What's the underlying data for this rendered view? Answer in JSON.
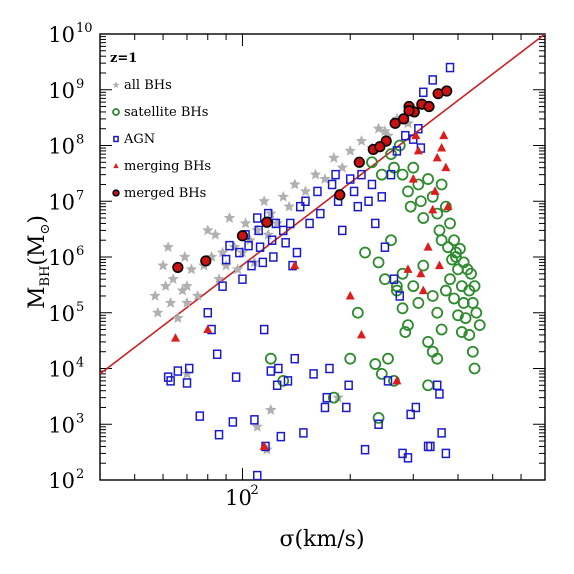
{
  "chart_data": {
    "type": "scatter",
    "annotation": "z=1",
    "xlabel": "σ(km/s)",
    "ylabel": "M_BH(M_⊙)",
    "x_scale": "log",
    "y_scale": "log",
    "xlim": [
      40,
      700
    ],
    "ylim": [
      100,
      10000000000
    ],
    "x_ticks": [
      {
        "value": 100,
        "base": "10",
        "exp": "2"
      }
    ],
    "y_ticks": [
      {
        "value": 100,
        "base": "10",
        "exp": "2"
      },
      {
        "value": 1000,
        "base": "10",
        "exp": "3"
      },
      {
        "value": 10000,
        "base": "10",
        "exp": "4"
      },
      {
        "value": 100000,
        "base": "10",
        "exp": "5"
      },
      {
        "value": 1000000,
        "base": "10",
        "exp": "6"
      },
      {
        "value": 10000000,
        "base": "10",
        "exp": "7"
      },
      {
        "value": 100000000,
        "base": "10",
        "exp": "8"
      },
      {
        "value": 1000000000,
        "base": "10",
        "exp": "9"
      },
      {
        "value": 10000000000,
        "base": "10",
        "exp": "10"
      }
    ],
    "legend_placement": "top-left",
    "fit_line": {
      "color": "#cc2020",
      "points": [
        [
          40,
          8000
        ],
        [
          700,
          10000000000
        ]
      ]
    },
    "series": [
      {
        "name": "all BHs",
        "marker": "star",
        "color": "#b0b0b0",
        "points": [
          [
            57,
            200000
          ],
          [
            58,
            100000
          ],
          [
            60,
            700000
          ],
          [
            61,
            300000
          ],
          [
            62,
            1500000
          ],
          [
            63,
            150000
          ],
          [
            64,
            400000
          ],
          [
            66,
            80000
          ],
          [
            68,
            250000
          ],
          [
            69,
            1000000
          ],
          [
            70,
            300000
          ],
          [
            70,
            150000
          ],
          [
            72,
            600000
          ],
          [
            75,
            200000
          ],
          [
            78,
            700000
          ],
          [
            80,
            3000000
          ],
          [
            82,
            1000000
          ],
          [
            84,
            2500000
          ],
          [
            86,
            400000
          ],
          [
            88,
            1200000
          ],
          [
            90,
            700000
          ],
          [
            92,
            5000000
          ],
          [
            95,
            1500000
          ],
          [
            97,
            600000
          ],
          [
            100,
            1200000
          ],
          [
            102,
            4000000
          ],
          [
            105,
            2000000
          ],
          [
            108,
            800000
          ],
          [
            110,
            3000000
          ],
          [
            115,
            10000000
          ],
          [
            118,
            2500000
          ],
          [
            120,
            6000000
          ],
          [
            125,
            4000000
          ],
          [
            130,
            12000000
          ],
          [
            135,
            8000000
          ],
          [
            140,
            20000000
          ],
          [
            150,
            15000000
          ],
          [
            160,
            30000000
          ],
          [
            170,
            25000000
          ],
          [
            180,
            60000000
          ],
          [
            190,
            40000000
          ],
          [
            200,
            80000000
          ],
          [
            215,
            120000000
          ],
          [
            230,
            90000000
          ],
          [
            240,
            200000000
          ],
          [
            255,
            150000000
          ],
          [
            270,
            300000000
          ],
          [
            290,
            250000000
          ],
          [
            250,
            180000000
          ],
          [
            70,
            8000
          ],
          [
            117,
            350
          ],
          [
            120,
            1800
          ],
          [
            185,
            3000
          ],
          [
            110,
            900
          ]
        ]
      },
      {
        "name": "satellite BHs",
        "marker": "circle",
        "color": "#2e8b2e",
        "points": [
          [
            230,
            50000000
          ],
          [
            245,
            30000000
          ],
          [
            260,
            70000000
          ],
          [
            265,
            40000000
          ],
          [
            275,
            100000000
          ],
          [
            280,
            30000000
          ],
          [
            290,
            15000000
          ],
          [
            295,
            8000000
          ],
          [
            300,
            40000000
          ],
          [
            310,
            20000000
          ],
          [
            315,
            10000000
          ],
          [
            320,
            5000000
          ],
          [
            330,
            25000000
          ],
          [
            340,
            12000000
          ],
          [
            350,
            6000000
          ],
          [
            355,
            3000000
          ],
          [
            360,
            20000000
          ],
          [
            370,
            8000000
          ],
          [
            380,
            4000000
          ],
          [
            390,
            2000000
          ],
          [
            395,
            1000000
          ],
          [
            400,
            600000
          ],
          [
            410,
            300000
          ],
          [
            415,
            150000
          ],
          [
            420,
            80000
          ],
          [
            430,
            40000
          ],
          [
            440,
            20000
          ],
          [
            445,
            10000
          ],
          [
            220,
            1200000
          ],
          [
            240,
            800000
          ],
          [
            250,
            400000
          ],
          [
            260,
            2000000
          ],
          [
            270,
            250000
          ],
          [
            280,
            120000
          ],
          [
            290,
            60000
          ],
          [
            300,
            300000
          ],
          [
            310,
            150000
          ],
          [
            320,
            700000
          ],
          [
            330,
            30000
          ],
          [
            340,
            200000
          ],
          [
            350,
            100000
          ],
          [
            360,
            50000
          ],
          [
            370,
            250000
          ],
          [
            380,
            400000
          ],
          [
            390,
            180000
          ],
          [
            400,
            90000
          ],
          [
            410,
            45000
          ],
          [
            210,
            100000
          ],
          [
            200,
            15000
          ],
          [
            120,
            15000
          ],
          [
            130,
            6000
          ],
          [
            180,
            3000
          ],
          [
            240,
            1300
          ],
          [
            255,
            15000
          ],
          [
            265,
            6000
          ],
          [
            270,
            300000
          ],
          [
            280,
            500000
          ],
          [
            330,
            5000
          ],
          [
            340,
            20000
          ],
          [
            350,
            15000
          ],
          [
            360,
            2000000
          ],
          [
            375,
            1500000
          ],
          [
            385,
            900000
          ],
          [
            395,
            1200000
          ],
          [
            405,
            1400000
          ],
          [
            415,
            800000
          ],
          [
            425,
            600000
          ],
          [
            435,
            500000
          ],
          [
            445,
            300000
          ],
          [
            430,
            250000
          ],
          [
            440,
            150000
          ],
          [
            450,
            100000
          ],
          [
            460,
            60000
          ],
          [
            235,
            12000
          ],
          [
            245,
            8000
          ],
          [
            285,
            45000
          ]
        ]
      },
      {
        "name": "AGN",
        "marker": "square",
        "color": "#1a1acc",
        "points": [
          [
            62,
            7000
          ],
          [
            63,
            6000
          ],
          [
            66,
            9000
          ],
          [
            70,
            5500
          ],
          [
            76,
            1400
          ],
          [
            80,
            100000
          ],
          [
            82,
            50000
          ],
          [
            85,
            18000
          ],
          [
            86,
            650
          ],
          [
            88,
            300000
          ],
          [
            90,
            900000
          ],
          [
            92,
            1600000
          ],
          [
            94,
            1100
          ],
          [
            96,
            7000
          ],
          [
            98,
            1200000
          ],
          [
            100,
            400000
          ],
          [
            102,
            2500000
          ],
          [
            104,
            1600000
          ],
          [
            106,
            700000
          ],
          [
            108,
            1200
          ],
          [
            110,
            5000000
          ],
          [
            111,
            3000000
          ],
          [
            112,
            1500000
          ],
          [
            114,
            800000
          ],
          [
            115,
            50000
          ],
          [
            116,
            400
          ],
          [
            118,
            6000000
          ],
          [
            120,
            9000
          ],
          [
            121,
            2000000
          ],
          [
            122,
            1000000
          ],
          [
            124,
            4000000
          ],
          [
            125,
            5000
          ],
          [
            126,
            10000
          ],
          [
            128,
            600
          ],
          [
            130,
            3000000
          ],
          [
            132,
            1800000
          ],
          [
            134,
            6000
          ],
          [
            136,
            4000000
          ],
          [
            138,
            700000
          ],
          [
            140,
            15000
          ],
          [
            142,
            1200000
          ],
          [
            145,
            8000000
          ],
          [
            148,
            700
          ],
          [
            150,
            10000000
          ],
          [
            154,
            4000000
          ],
          [
            158,
            8000
          ],
          [
            162,
            15000000
          ],
          [
            165,
            6000000
          ],
          [
            170,
            2000
          ],
          [
            172,
            3000
          ],
          [
            175,
            10000
          ],
          [
            178,
            20000000
          ],
          [
            182,
            30000000
          ],
          [
            185,
            10000000
          ],
          [
            190,
            3000000
          ],
          [
            195,
            2000
          ],
          [
            198,
            5000
          ],
          [
            200,
            25000000
          ],
          [
            205,
            15000000
          ],
          [
            210,
            8000000
          ],
          [
            215,
            30000000
          ],
          [
            220,
            350
          ],
          [
            225,
            10000000
          ],
          [
            230,
            20000000
          ],
          [
            235,
            4000000
          ],
          [
            240,
            1000
          ],
          [
            245,
            12000000
          ],
          [
            250,
            1500000
          ],
          [
            255,
            6000
          ],
          [
            260,
            30000000
          ],
          [
            265,
            400000
          ],
          [
            270,
            80000000
          ],
          [
            275,
            200000
          ],
          [
            280,
            300
          ],
          [
            285,
            150000000
          ],
          [
            290,
            250
          ],
          [
            295,
            1500
          ],
          [
            300,
            130000000
          ],
          [
            305,
            2000
          ],
          [
            310,
            200000000
          ],
          [
            315,
            90000000
          ],
          [
            320,
            900000000
          ],
          [
            330,
            400
          ],
          [
            335,
            400
          ],
          [
            340,
            1500000000
          ],
          [
            350,
            5000
          ],
          [
            355,
            3500
          ],
          [
            360,
            700
          ],
          [
            370,
            300
          ],
          [
            380,
            2500000000
          ],
          [
            110,
            120
          ],
          [
            71,
            10000
          ]
        ]
      },
      {
        "name": "merging BHs",
        "marker": "triangle",
        "color": "#dd1c1c",
        "points": [
          [
            65,
            35000
          ],
          [
            80,
            50000
          ],
          [
            115,
            400
          ],
          [
            140,
            700000
          ],
          [
            200,
            200000
          ],
          [
            215,
            40000
          ],
          [
            270,
            6000
          ],
          [
            290,
            600000
          ],
          [
            300,
            25000000
          ],
          [
            305,
            150000000
          ],
          [
            310,
            80000000
          ],
          [
            315,
            500000
          ],
          [
            320,
            250000
          ],
          [
            330,
            1500000
          ],
          [
            340,
            7000000
          ],
          [
            345,
            15000000
          ],
          [
            350,
            60000000
          ],
          [
            355,
            700000
          ],
          [
            360,
            90000000
          ],
          [
            365,
            150000000
          ],
          [
            370,
            40000000
          ],
          [
            375,
            8000000
          ]
        ]
      },
      {
        "name": "merged BHs",
        "marker": "dot",
        "color": "#cc1111",
        "points": [
          [
            66,
            650000
          ],
          [
            79,
            850000
          ],
          [
            100,
            2400000
          ],
          [
            117,
            4200000
          ],
          [
            187,
            13000000
          ],
          [
            212,
            50000000
          ],
          [
            232,
            85000000
          ],
          [
            252,
            120000000
          ],
          [
            267,
            250000000
          ],
          [
            282,
            300000000
          ],
          [
            292,
            500000000
          ],
          [
            302,
            400000000
          ],
          [
            317,
            550000000
          ],
          [
            332,
            500000000
          ],
          [
            352,
            850000000
          ],
          [
            372,
            950000000
          ],
          [
            242,
            95000000
          ],
          [
            292,
            420000000
          ]
        ]
      }
    ]
  }
}
